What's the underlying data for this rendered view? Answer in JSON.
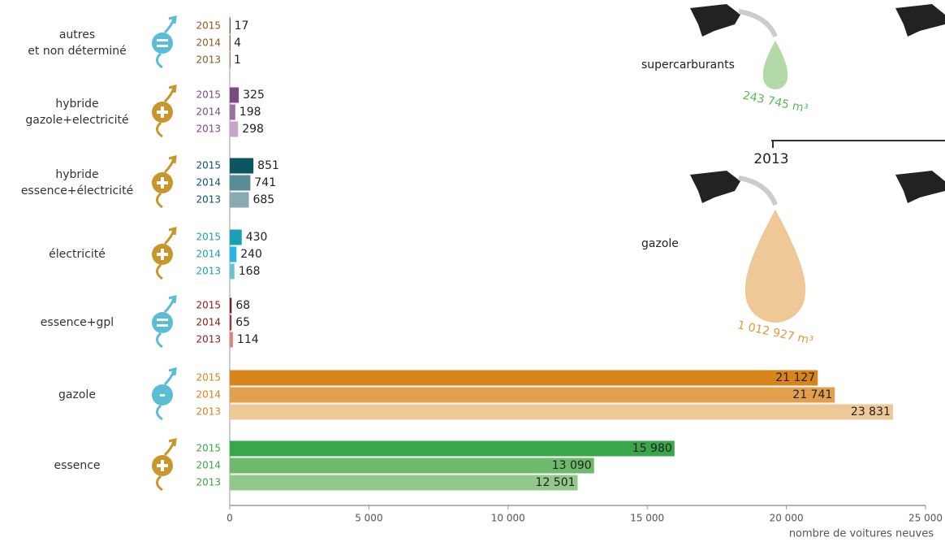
{
  "chart_data": {
    "type": "bar",
    "categories": [
      "autres\net non déterminé",
      "hybride\ngazole+electricité",
      "hybride\nessence+électricité",
      "électricité",
      "essence+gpl",
      "gazole",
      "essence"
    ],
    "series": [
      {
        "name": "2015",
        "colors": [
          "#7a5120",
          "#7b4a82",
          "#0e5562",
          "#1aa0b5",
          "#7a1a1a",
          "#d7841a",
          "#3aa64a"
        ],
        "values": [
          17,
          325,
          851,
          430,
          68,
          21127,
          15980
        ],
        "value_labels": [
          "17",
          "325",
          "851",
          "430",
          "68",
          "21 127",
          "15 980"
        ]
      },
      {
        "name": "2014",
        "colors": [
          "#94682c",
          "#9c6fa1",
          "#5a8b96",
          "#2ab4e8",
          "#a33a3a",
          "#e29f4e",
          "#6cba6a"
        ],
        "values": [
          4,
          198,
          741,
          240,
          65,
          21741,
          13090
        ],
        "value_labels": [
          "4",
          "198",
          "741",
          "240",
          "65",
          "21 741",
          "13 090"
        ]
      },
      {
        "name": "2013",
        "colors": [
          "#b08050",
          "#c6a7c9",
          "#8aa9b0",
          "#6cc3d0",
          "#d9877a",
          "#efc898",
          "#92c98a"
        ],
        "values": [
          1,
          298,
          685,
          168,
          114,
          23831,
          12501
        ],
        "value_labels": [
          "1",
          "298",
          "685",
          "168",
          "114",
          "23 831",
          "12 501"
        ]
      }
    ],
    "year_label_colors": [
      "#8a5a1a",
      "#7b4a82",
      "#0e5562",
      "#1aa0b5",
      "#8a1a1a",
      "#d7841a",
      "#3aa64a"
    ],
    "xlim": [
      0,
      25000
    ],
    "xticks": [
      0,
      {
        "value": 5000,
        "label": "5 000"
      },
      {
        "value": 10000,
        "label": "10 000"
      },
      {
        "value": 15000,
        "label": "15 000"
      },
      {
        "value": 20000,
        "label": "20 000"
      },
      {
        "value": 25000,
        "label": "25 000"
      }
    ],
    "x_label": "nombre de voitures neuves",
    "annotations": [
      "supercarburants",
      "243 745 m³",
      "2013",
      "gazole",
      "1 012 927 m³"
    ]
  }
}
